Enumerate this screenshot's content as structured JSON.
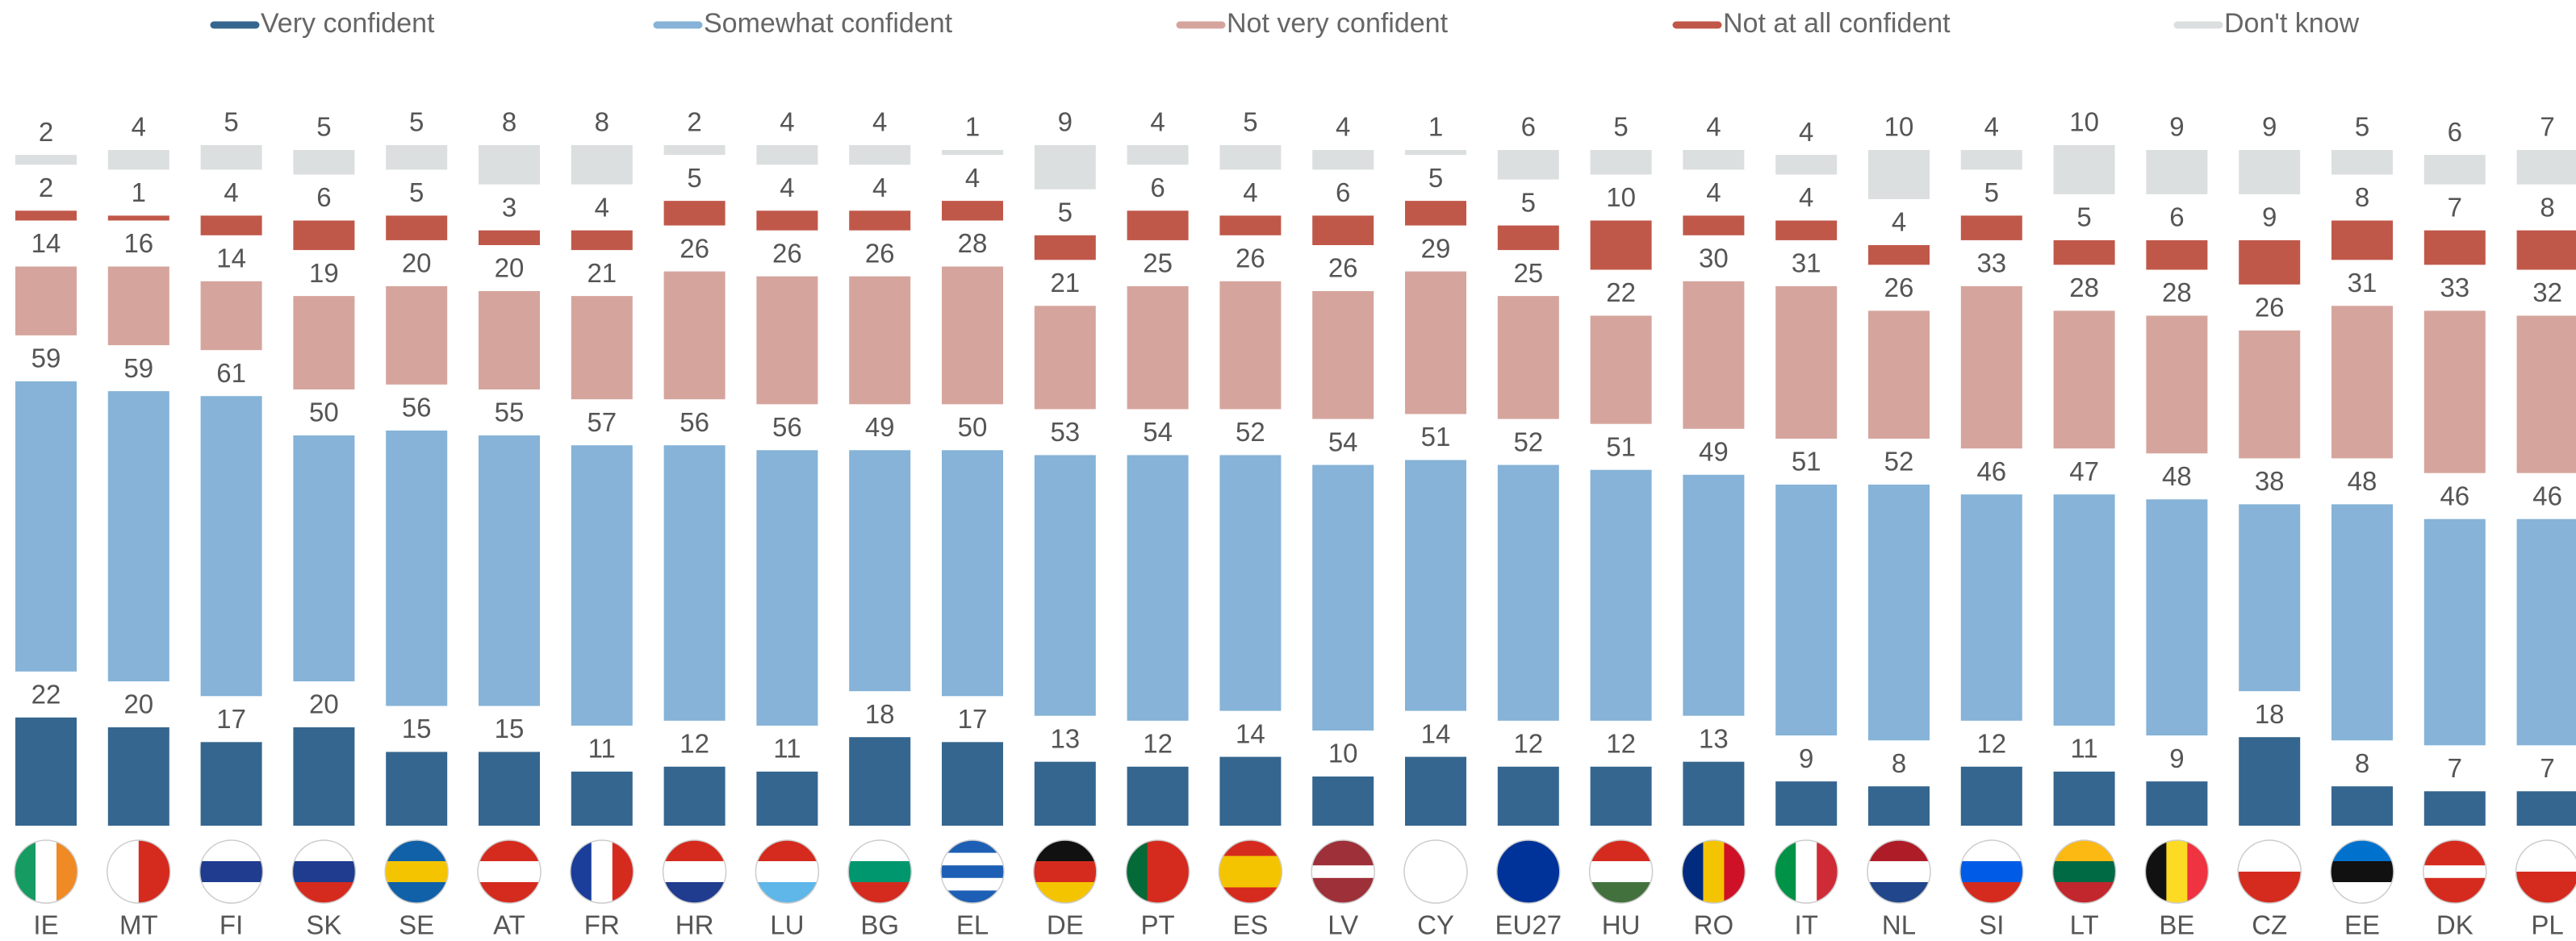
{
  "chart_data": {
    "type": "stacked-bar",
    "categories": [
      "IE",
      "MT",
      "FI",
      "SK",
      "SE",
      "AT",
      "FR",
      "HR",
      "LU",
      "BG",
      "EL",
      "DE",
      "PT",
      "ES",
      "LV",
      "CY",
      "EU27",
      "HU",
      "RO",
      "IT",
      "NL",
      "SI",
      "LT",
      "BE",
      "CZ",
      "EE",
      "DK",
      "PL"
    ],
    "series": [
      {
        "name": "Very confident",
        "color": "#35668f",
        "values": [
          22,
          20,
          17,
          20,
          15,
          15,
          11,
          12,
          11,
          18,
          17,
          13,
          12,
          14,
          10,
          14,
          12,
          12,
          13,
          9,
          8,
          12,
          11,
          9,
          18,
          8,
          7,
          7
        ]
      },
      {
        "name": "Somewhat confident",
        "color": "#86b3d7",
        "values": [
          59,
          59,
          61,
          50,
          56,
          55,
          57,
          56,
          56,
          49,
          50,
          53,
          54,
          52,
          54,
          51,
          52,
          51,
          49,
          51,
          52,
          46,
          47,
          48,
          38,
          48,
          46,
          46
        ]
      },
      {
        "name": "Not very confident",
        "color": "#d5a59d",
        "values": [
          14,
          16,
          14,
          19,
          20,
          20,
          21,
          26,
          26,
          26,
          28,
          21,
          25,
          26,
          26,
          29,
          25,
          22,
          30,
          31,
          26,
          33,
          28,
          28,
          26,
          31,
          33,
          32
        ]
      },
      {
        "name": "Not at all confident",
        "color": "#c0584a",
        "values": [
          2,
          1,
          4,
          6,
          5,
          3,
          4,
          5,
          4,
          4,
          4,
          5,
          6,
          4,
          6,
          5,
          5,
          10,
          4,
          4,
          4,
          5,
          5,
          6,
          9,
          8,
          7,
          8
        ]
      },
      {
        "name": "Don't know",
        "color": "#dcdfdf",
        "values": [
          2,
          4,
          5,
          5,
          5,
          8,
          8,
          2,
          4,
          4,
          1,
          9,
          4,
          5,
          4,
          1,
          6,
          5,
          4,
          4,
          10,
          4,
          10,
          9,
          9,
          5,
          6,
          7
        ]
      }
    ]
  }
}
